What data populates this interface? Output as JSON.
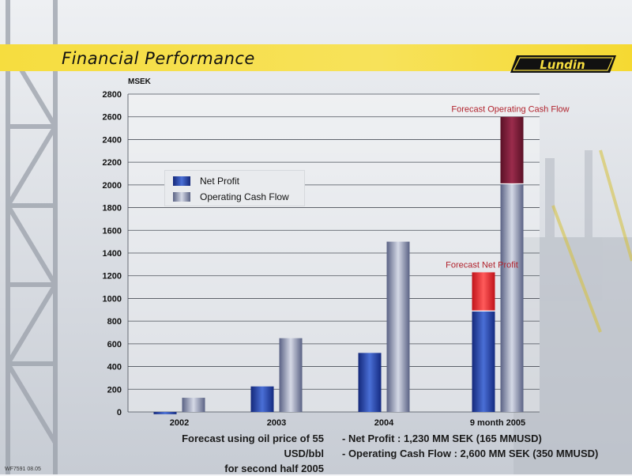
{
  "header": {
    "title": "Financial Performance",
    "logo_text": "Lundin"
  },
  "footer": {
    "code": "WF7591 08.05"
  },
  "notes": {
    "left": [
      "Forecast using oil price of 55 USD/bbl",
      "for second half 2005"
    ],
    "right": [
      "- Net Profit :  1,230 MM SEK (165 MMUSD)",
      "- Operating Cash Flow :  2,600 MM SEK  (350 MMUSD)"
    ]
  },
  "legend": [
    {
      "label": "Net Profit"
    },
    {
      "label": "Operating Cash Flow"
    }
  ],
  "colors": {
    "net_profit": "#2b4aa8",
    "operating_cash_flow": "#8a93b0",
    "forecast_net_profit": "#e2262a",
    "forecast_ocf": "#7a1c38",
    "forecast_label": "#b1232d",
    "title_band": "#f6dd3f"
  },
  "chart_data": {
    "type": "bar",
    "ylabel": "MSEK",
    "ylim": [
      0,
      2800
    ],
    "yticks": [
      0,
      200,
      400,
      600,
      800,
      1000,
      1200,
      1400,
      1600,
      1800,
      2000,
      2200,
      2400,
      2600,
      2800
    ],
    "categories": [
      "2002",
      "2003",
      "2004",
      "9 month 2005"
    ],
    "grid": true,
    "legend_position": "upper-left",
    "series": [
      {
        "name": "Net Profit",
        "values": [
          -20,
          225,
          520,
          890
        ],
        "forecast_extra": [
          0,
          0,
          0,
          340
        ]
      },
      {
        "name": "Operating Cash Flow",
        "values": [
          125,
          650,
          1500,
          2010
        ],
        "forecast_extra": [
          0,
          0,
          0,
          590
        ]
      }
    ],
    "annotations": [
      {
        "text": "Forecast Net Profit",
        "series": 0,
        "category": 3
      },
      {
        "text": "Forecast Operating Cash Flow",
        "series": 1,
        "category": 3
      }
    ]
  }
}
